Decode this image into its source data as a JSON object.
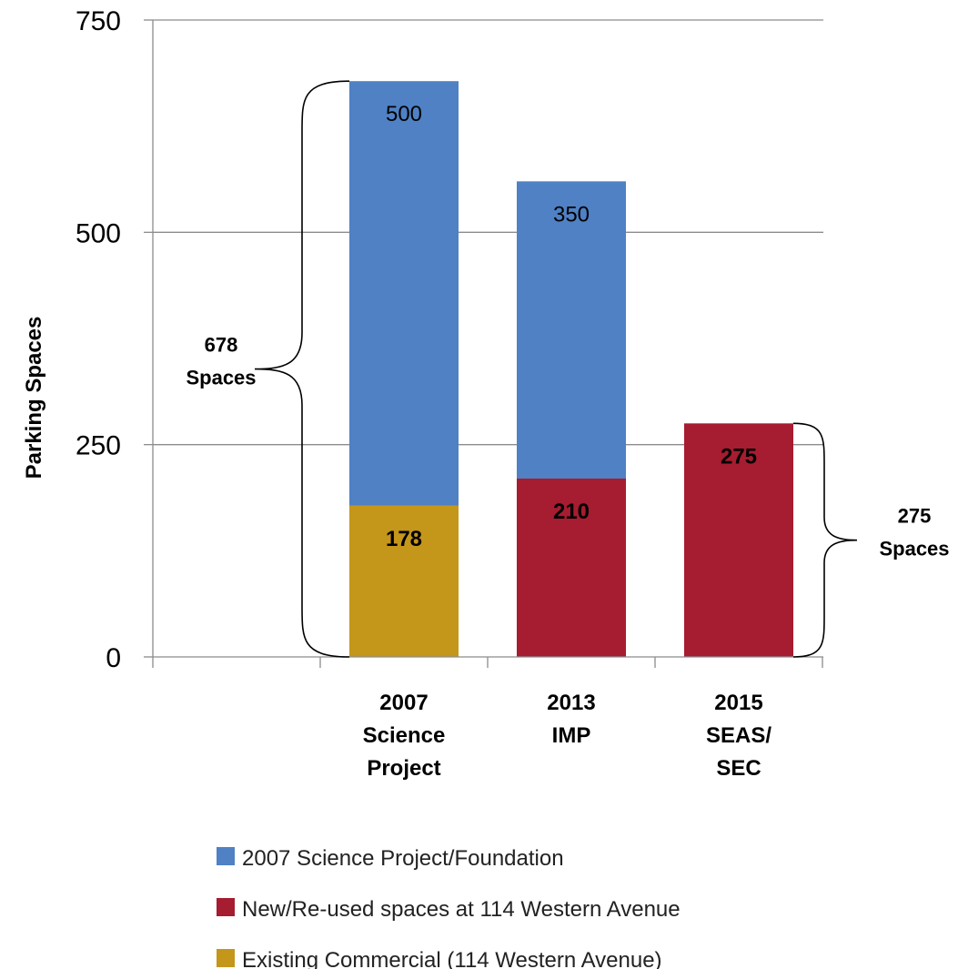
{
  "chart_data": {
    "type": "bar",
    "stacked": true,
    "ylabel": "Parking Spaces",
    "ylim": [
      0,
      750
    ],
    "yticks": [
      0,
      250,
      500,
      750
    ],
    "grid": true,
    "legend_position": "bottom",
    "categories": [
      [
        "2007",
        "Science",
        "Project"
      ],
      [
        "2013",
        "IMP"
      ],
      [
        "2015",
        "SEAS/",
        "SEC"
      ]
    ],
    "series": [
      {
        "name": "Existing Commercial (114 Western Avenue)",
        "color": "#C4961A",
        "values": [
          178,
          0,
          0
        ],
        "label_bold": true
      },
      {
        "name": "New/Re-used spaces at 114 Western Avenue",
        "color": "#A61C30",
        "values": [
          0,
          210,
          275
        ],
        "label_bold": true
      },
      {
        "name": "2007 Science Project/Foundation",
        "color": "#4F81C4",
        "values": [
          500,
          350,
          0
        ],
        "label_bold": false
      }
    ],
    "legend_order": [
      2,
      1,
      0
    ],
    "annotations": [
      {
        "category_index": 0,
        "side": "left",
        "from": 0,
        "to": 678,
        "lines": [
          "678",
          "Spaces"
        ]
      },
      {
        "category_index": 2,
        "side": "right",
        "from": 0,
        "to": 275,
        "lines": [
          "275",
          "Spaces"
        ]
      }
    ]
  }
}
